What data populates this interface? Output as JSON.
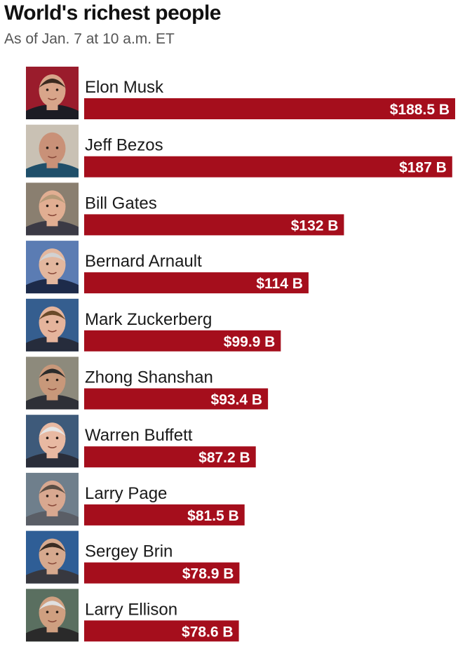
{
  "header": {
    "title": "World's richest people",
    "subtitle": "As of Jan. 7 at 10 a.m. ET"
  },
  "colors": {
    "bar": "#a50e1c",
    "bar_text": "#ffffff",
    "name_text": "#1a1a1a"
  },
  "chart_data": {
    "type": "bar",
    "orientation": "horizontal",
    "title": "World's richest people",
    "subtitle": "As of Jan. 7 at 10 a.m. ET",
    "xlabel": "",
    "ylabel": "",
    "grid": false,
    "legend": "none",
    "xlim": [
      0,
      188.5
    ],
    "categories": [
      "Elon Musk",
      "Jeff Bezos",
      "Bill Gates",
      "Bernard Arnault",
      "Mark Zuckerberg",
      "Zhong Shanshan",
      "Warren Buffett",
      "Larry Page",
      "Sergey Brin",
      "Larry Ellison"
    ],
    "values": [
      188.5,
      187,
      132,
      114,
      99.9,
      93.4,
      87.2,
      81.5,
      78.9,
      78.6
    ],
    "value_labels": [
      "$188.5 B",
      "$187 B",
      "$132 B",
      "$114 B",
      "$99.9 B",
      "$93.4 B",
      "$87.2 B",
      "$81.5 B",
      "$78.9 B",
      "$78.6 B"
    ],
    "photo_icons": [
      "elon-musk-photo",
      "jeff-bezos-photo",
      "bill-gates-photo",
      "bernard-arnault-photo",
      "mark-zuckerberg-photo",
      "zhong-shanshan-photo",
      "warren-buffett-photo",
      "larry-page-photo",
      "sergey-brin-photo",
      "larry-ellison-photo"
    ]
  }
}
